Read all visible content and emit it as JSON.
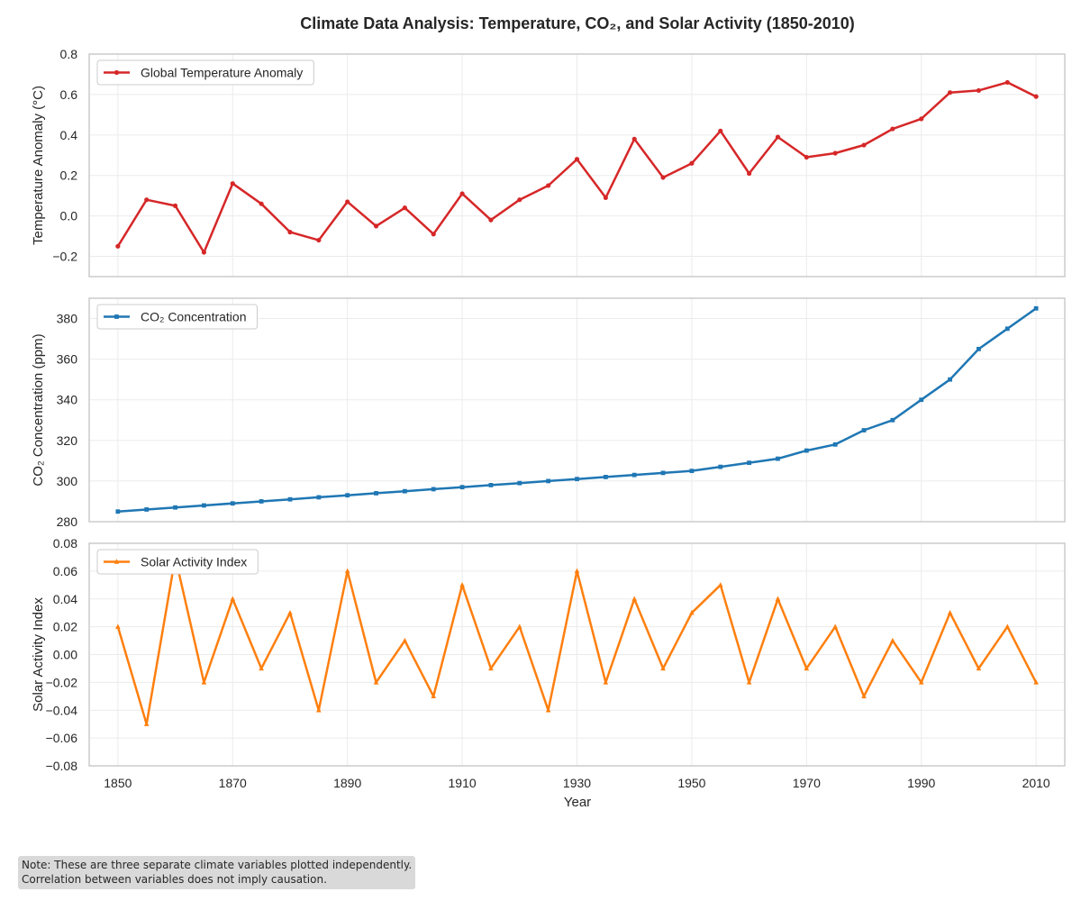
{
  "chart_data": {
    "type": "line",
    "title": "Climate Data Analysis: Temperature, CO₂, and Solar Activity (1850-2010)",
    "xlabel": "Year",
    "x": [
      1850,
      1855,
      1860,
      1865,
      1870,
      1875,
      1880,
      1885,
      1890,
      1895,
      1900,
      1905,
      1910,
      1915,
      1920,
      1925,
      1930,
      1935,
      1940,
      1945,
      1950,
      1955,
      1960,
      1965,
      1970,
      1975,
      1980,
      1985,
      1990,
      1995,
      2000,
      2005,
      2010
    ],
    "xlim": [
      1845,
      2015
    ],
    "xticks": [
      1850,
      1870,
      1890,
      1910,
      1930,
      1950,
      1970,
      1990,
      2010
    ],
    "grid": true,
    "legend_loc": "upper left",
    "panels": [
      {
        "series_name": "Global Temperature Anomaly",
        "ylabel": "Temperature Anomaly (°C)",
        "color": "#d62728",
        "marker": "circle",
        "ylim": [
          -0.3,
          0.8
        ],
        "yticks": [
          "0.8",
          "0.6",
          "0.4",
          "0.2",
          "0.0",
          "−0.2"
        ],
        "ytick_values": [
          0.8,
          0.6,
          0.4,
          0.2,
          0.0,
          -0.2
        ],
        "values": [
          -0.15,
          0.08,
          0.05,
          -0.18,
          0.16,
          0.06,
          -0.08,
          -0.12,
          0.07,
          -0.05,
          0.04,
          -0.09,
          0.11,
          -0.02,
          0.08,
          0.15,
          0.28,
          0.09,
          0.38,
          0.19,
          0.26,
          0.42,
          0.21,
          0.39,
          0.29,
          0.31,
          0.35,
          0.43,
          0.48,
          0.61,
          0.62,
          0.66,
          0.59
        ]
      },
      {
        "series_name": "CO₂ Concentration",
        "ylabel": "CO₂ Concentration (ppm)",
        "color": "#1f77b4",
        "marker": "square",
        "ylim": [
          280,
          390
        ],
        "yticks": [
          "380",
          "360",
          "340",
          "320",
          "300",
          "280"
        ],
        "ytick_values": [
          380,
          360,
          340,
          320,
          300,
          280
        ],
        "values": [
          285,
          286,
          287,
          288,
          289,
          290,
          291,
          292,
          293,
          294,
          295,
          296,
          297,
          298,
          299,
          300,
          301,
          302,
          303,
          304,
          305,
          307,
          309,
          311,
          315,
          318,
          325,
          330,
          340,
          350,
          365,
          375,
          385
        ]
      },
      {
        "series_name": "Solar Activity Index",
        "ylabel": "Solar Activity Index",
        "color": "#ff7f0e",
        "marker": "triangle",
        "ylim": [
          -0.08,
          0.08
        ],
        "yticks": [
          "0.08",
          "0.06",
          "0.04",
          "0.02",
          "0.00",
          "−0.02",
          "−0.04",
          "−0.06",
          "−0.08"
        ],
        "ytick_values": [
          0.08,
          0.06,
          0.04,
          0.02,
          0.0,
          -0.02,
          -0.04,
          -0.06,
          -0.08
        ],
        "values": [
          0.02,
          -0.05,
          0.07,
          -0.02,
          0.04,
          -0.01,
          0.03,
          -0.04,
          0.06,
          -0.02,
          0.01,
          -0.03,
          0.05,
          -0.01,
          0.02,
          -0.04,
          0.06,
          -0.02,
          0.04,
          -0.01,
          0.03,
          0.05,
          -0.02,
          0.04,
          -0.01,
          0.02,
          -0.03,
          0.01,
          -0.02,
          0.03,
          -0.01,
          0.02,
          -0.02
        ]
      }
    ]
  },
  "note": {
    "line1": "Note: These are three separate climate variables plotted independently.",
    "line2": "Correlation between variables does not imply causation."
  }
}
